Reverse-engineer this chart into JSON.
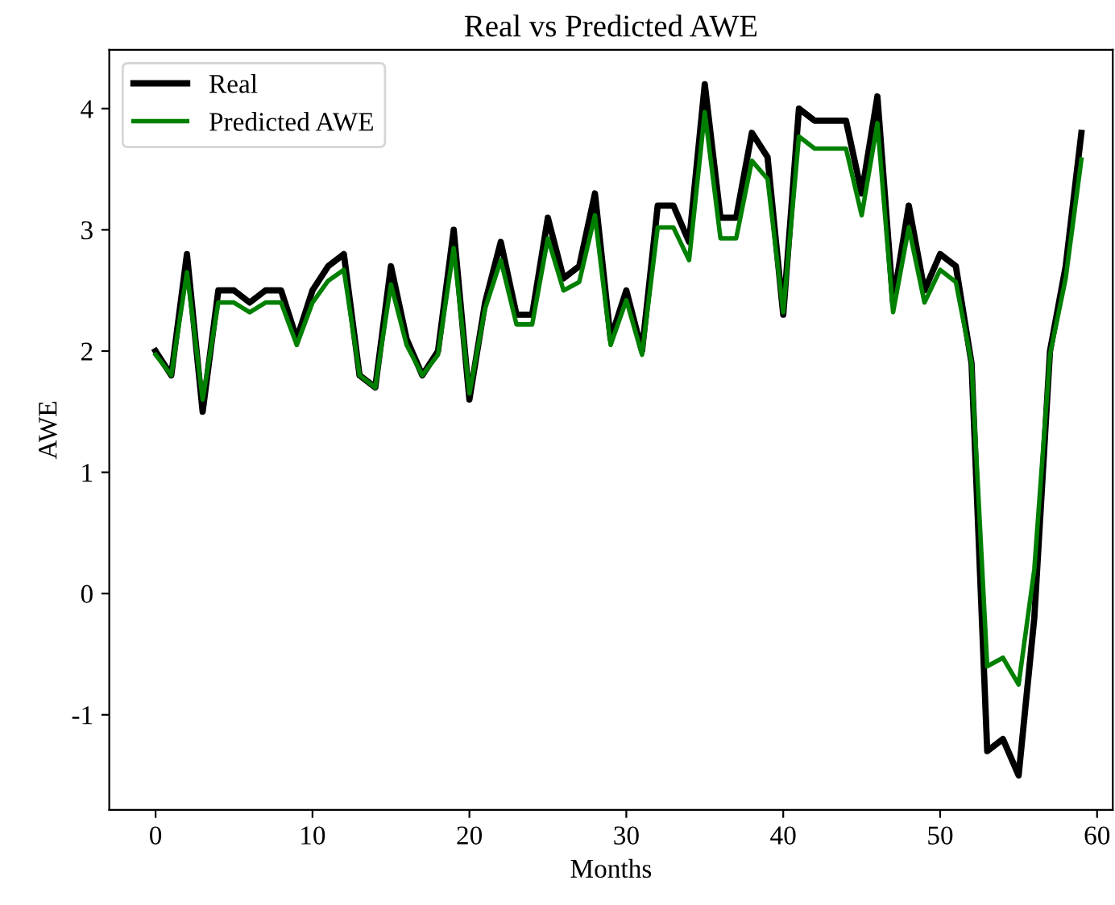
{
  "chart_data": {
    "type": "line",
    "title": "Real vs Predicted AWE",
    "xlabel": "Months",
    "ylabel": "AWE",
    "x": [
      0,
      1,
      2,
      3,
      4,
      5,
      6,
      7,
      8,
      9,
      10,
      11,
      12,
      13,
      14,
      15,
      16,
      17,
      18,
      19,
      20,
      21,
      22,
      23,
      24,
      25,
      26,
      27,
      28,
      29,
      30,
      31,
      32,
      33,
      34,
      35,
      36,
      37,
      38,
      39,
      40,
      41,
      42,
      43,
      44,
      45,
      46,
      47,
      48,
      49,
      50,
      51,
      52,
      53,
      54,
      55,
      56,
      57,
      58,
      59
    ],
    "series": [
      {
        "name": "Real",
        "color": "#000000",
        "values": [
          2.0,
          1.8,
          2.8,
          1.5,
          2.5,
          2.5,
          2.4,
          2.5,
          2.5,
          2.1,
          2.5,
          2.7,
          2.8,
          1.8,
          1.7,
          2.7,
          2.1,
          1.8,
          2.0,
          3.0,
          1.6,
          2.4,
          2.9,
          2.3,
          2.3,
          3.1,
          2.6,
          2.7,
          3.3,
          2.1,
          2.5,
          2.0,
          3.2,
          3.2,
          2.9,
          4.2,
          3.1,
          3.1,
          3.8,
          3.6,
          2.3,
          4.0,
          3.9,
          3.9,
          3.9,
          3.3,
          4.1,
          2.4,
          3.2,
          2.5,
          2.8,
          2.7,
          1.9,
          -1.3,
          -1.2,
          -1.5,
          -0.2,
          2.0,
          2.7,
          3.8
        ]
      },
      {
        "name": "Predicted AWE",
        "color": "#008000",
        "values": [
          1.97,
          1.8,
          2.65,
          1.6,
          2.4,
          2.4,
          2.32,
          2.4,
          2.4,
          2.05,
          2.4,
          2.58,
          2.67,
          1.8,
          1.7,
          2.55,
          2.05,
          1.8,
          1.97,
          2.85,
          1.65,
          2.35,
          2.75,
          2.22,
          2.22,
          2.93,
          2.5,
          2.57,
          3.12,
          2.05,
          2.42,
          1.97,
          3.02,
          3.02,
          2.75,
          3.97,
          2.93,
          2.93,
          3.57,
          3.42,
          2.32,
          3.77,
          3.67,
          3.67,
          3.67,
          3.12,
          3.88,
          2.32,
          3.02,
          2.4,
          2.67,
          2.57,
          1.9,
          -0.6,
          -0.53,
          -0.75,
          0.2,
          1.97,
          2.6,
          3.58
        ]
      }
    ],
    "xlim": [
      -2.95,
      61.0
    ],
    "ylim": [
      -1.785,
      4.485
    ],
    "xticks": [
      0,
      10,
      20,
      30,
      40,
      50,
      60
    ],
    "yticks": [
      -1,
      0,
      1,
      2,
      3,
      4
    ],
    "legend": "top left",
    "grid": false,
    "marker": "none",
    "line_style": "solid"
  }
}
